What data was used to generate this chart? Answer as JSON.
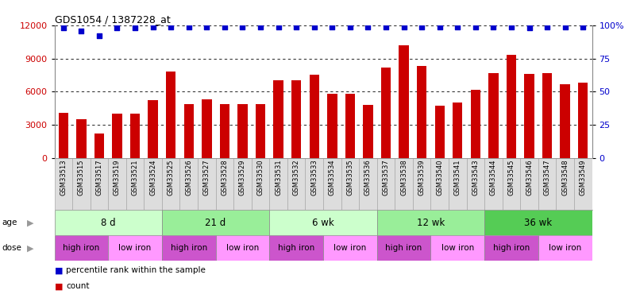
{
  "title": "GDS1054 / 1387228_at",
  "samples": [
    "GSM33513",
    "GSM33515",
    "GSM33517",
    "GSM33519",
    "GSM33521",
    "GSM33524",
    "GSM33525",
    "GSM33526",
    "GSM33527",
    "GSM33528",
    "GSM33529",
    "GSM33530",
    "GSM33531",
    "GSM33532",
    "GSM33533",
    "GSM33534",
    "GSM33535",
    "GSM33536",
    "GSM33537",
    "GSM33538",
    "GSM33539",
    "GSM33540",
    "GSM33541",
    "GSM33543",
    "GSM33544",
    "GSM33545",
    "GSM33546",
    "GSM33547",
    "GSM33548",
    "GSM33549"
  ],
  "counts": [
    4100,
    3500,
    2200,
    4000,
    4000,
    5200,
    7800,
    4900,
    5300,
    4900,
    4900,
    4900,
    7000,
    7000,
    7500,
    5800,
    5800,
    4800,
    8200,
    10200,
    8300,
    4700,
    5000,
    6200,
    7700,
    9300,
    7600,
    7700,
    6700,
    6800
  ],
  "percentile_ranks": [
    98,
    96,
    92,
    98,
    98,
    99,
    99,
    99,
    99,
    99,
    99,
    99,
    99,
    99,
    99,
    99,
    99,
    99,
    99,
    99,
    99,
    99,
    99,
    99,
    99,
    99,
    98,
    99,
    99,
    99
  ],
  "bar_color": "#CC0000",
  "dot_color": "#0000CC",
  "ylim_left": [
    0,
    12000
  ],
  "ylim_right": [
    0,
    100
  ],
  "yticks_left": [
    0,
    3000,
    6000,
    9000,
    12000
  ],
  "yticks_right": [
    0,
    25,
    50,
    75,
    100
  ],
  "age_groups": [
    {
      "label": "8 d",
      "start": 0,
      "end": 6,
      "color": "#ccffcc"
    },
    {
      "label": "21 d",
      "start": 6,
      "end": 12,
      "color": "#99ee99"
    },
    {
      "label": "6 wk",
      "start": 12,
      "end": 18,
      "color": "#ccffcc"
    },
    {
      "label": "12 wk",
      "start": 18,
      "end": 24,
      "color": "#99ee99"
    },
    {
      "label": "36 wk",
      "start": 24,
      "end": 30,
      "color": "#55cc55"
    }
  ],
  "dose_groups": [
    {
      "label": "high iron",
      "start": 0,
      "end": 3,
      "color": "#cc55cc"
    },
    {
      "label": "low iron",
      "start": 3,
      "end": 6,
      "color": "#ff99ff"
    },
    {
      "label": "high iron",
      "start": 6,
      "end": 9,
      "color": "#cc55cc"
    },
    {
      "label": "low iron",
      "start": 9,
      "end": 12,
      "color": "#ff99ff"
    },
    {
      "label": "high iron",
      "start": 12,
      "end": 15,
      "color": "#cc55cc"
    },
    {
      "label": "low iron",
      "start": 15,
      "end": 18,
      "color": "#ff99ff"
    },
    {
      "label": "high iron",
      "start": 18,
      "end": 21,
      "color": "#cc55cc"
    },
    {
      "label": "low iron",
      "start": 21,
      "end": 24,
      "color": "#ff99ff"
    },
    {
      "label": "high iron",
      "start": 24,
      "end": 27,
      "color": "#cc55cc"
    },
    {
      "label": "low iron",
      "start": 27,
      "end": 30,
      "color": "#ff99ff"
    }
  ],
  "legend_count_label": "count",
  "legend_pct_label": "percentile rank within the sample",
  "background_color": "#ffffff",
  "xticklabel_bg": "#dddddd",
  "xticklabel_border": "#aaaaaa"
}
